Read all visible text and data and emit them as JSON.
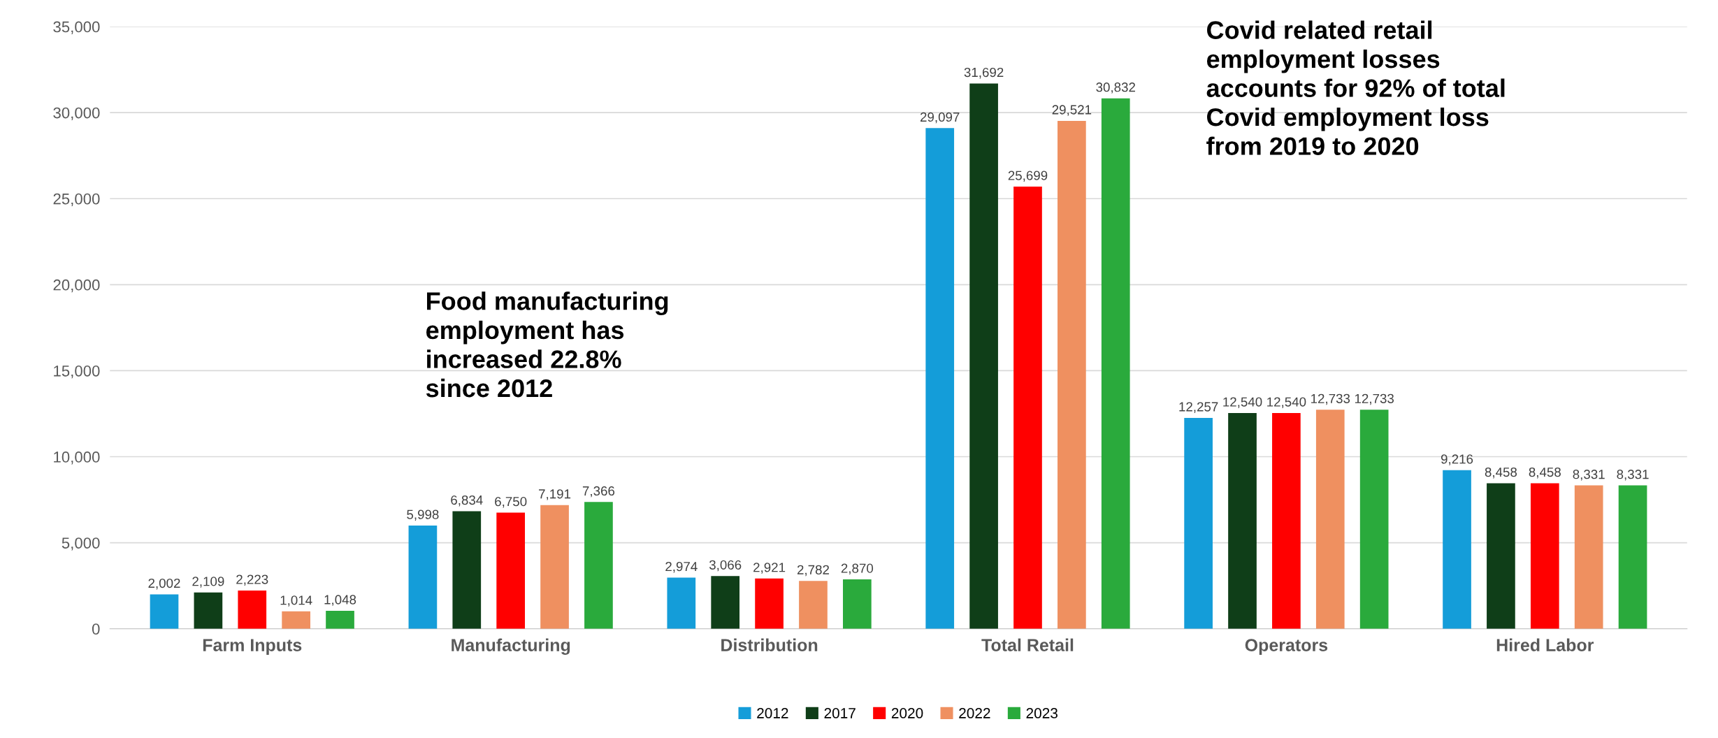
{
  "chart_data": {
    "type": "bar",
    "categories": [
      "Farm Inputs",
      "Manufacturing",
      "Distribution",
      "Total Retail",
      "Operators",
      "Hired Labor"
    ],
    "series": [
      {
        "name": "2012",
        "color": "#149dd9",
        "values": [
          2002,
          5998,
          2974,
          29097,
          12257,
          9216
        ],
        "value_labels": [
          "2,002",
          "5,998",
          "2,974",
          "29,097",
          "12,257",
          "9,216"
        ]
      },
      {
        "name": "2017",
        "color": "#0f3e18",
        "values": [
          2109,
          6834,
          3066,
          31692,
          12540,
          8458
        ],
        "value_labels": [
          "2,109",
          "6,834",
          "3,066",
          "31,692",
          "12,540",
          "8,458"
        ]
      },
      {
        "name": "2020",
        "color": "#ff0000",
        "values": [
          2223,
          6750,
          2921,
          25699,
          12540,
          8458
        ],
        "value_labels": [
          "2,223",
          "6,750",
          "2,921",
          "25,699",
          "12,540",
          "8,458"
        ]
      },
      {
        "name": "2022",
        "color": "#ef9060",
        "values": [
          1014,
          7191,
          2782,
          29521,
          12733,
          8331
        ],
        "value_labels": [
          "1,014",
          "7,191",
          "2,782",
          "29,521",
          "12,733",
          "8,331"
        ]
      },
      {
        "name": "2023",
        "color": "#2aaa3c",
        "values": [
          1048,
          7366,
          2870,
          30832,
          12733,
          8331
        ],
        "value_labels": [
          "1,048",
          "7,366",
          "2,870",
          "30,832",
          "12,733",
          "8,331"
        ]
      }
    ],
    "ylim": [
      0,
      35000
    ],
    "yticks": [
      {
        "value": 0,
        "label": "0"
      },
      {
        "value": 5000,
        "label": "5,000"
      },
      {
        "value": 10000,
        "label": "10,000"
      },
      {
        "value": 15000,
        "label": "15,000"
      },
      {
        "value": 20000,
        "label": "20,000"
      },
      {
        "value": 25000,
        "label": "25,000"
      },
      {
        "value": 30000,
        "label": "30,000"
      },
      {
        "value": 35000,
        "label": "35,000"
      }
    ],
    "grid": "y",
    "legend": "bottom",
    "annotations": [
      "Food manufacturing\nemployment has\nincreased 22.8%\nsince 2012",
      "Covid related retail\nemployment losses\naccounts for 92% of total\nCovid employment loss\nfrom 2019 to 2020"
    ]
  }
}
